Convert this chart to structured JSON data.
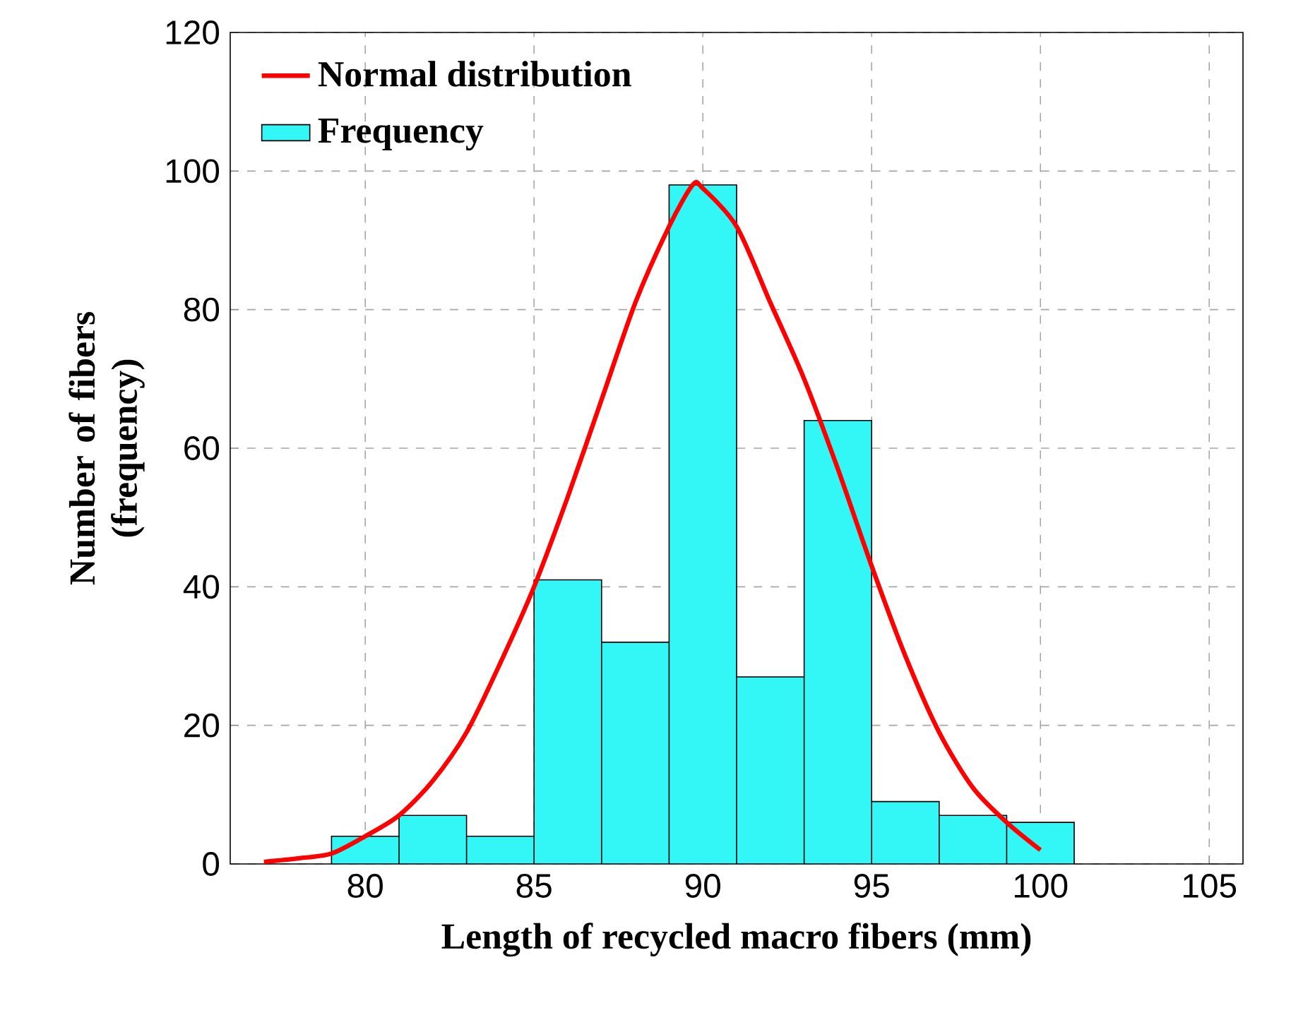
{
  "chart_data": {
    "type": "histogram",
    "xlabel": "Length of recycled macro fibers (mm)",
    "ylabel": "Number of fibers (frequency)",
    "xlim": [
      76,
      106
    ],
    "xticks": [
      80,
      85,
      90,
      95,
      100,
      105
    ],
    "ylim": [
      0,
      120
    ],
    "yticks": [
      0,
      20,
      40,
      60,
      80,
      100,
      120
    ],
    "grid": true,
    "legend": "top left",
    "series": [
      {
        "name": "Normal distribution",
        "type": "line",
        "color": "#ff0000",
        "x": [
          77,
          78,
          79,
          80,
          81,
          82,
          83,
          84,
          85,
          86,
          87,
          88,
          89,
          89.7,
          90,
          91,
          92,
          93,
          94,
          95,
          96,
          97,
          98,
          99,
          100
        ],
        "values": [
          0.3,
          0.8,
          1.5,
          4,
          7,
          12,
          19,
          29,
          40,
          53,
          67,
          81,
          92,
          98,
          97.5,
          92,
          81,
          70,
          57,
          43,
          30,
          19,
          11,
          6,
          2
        ]
      },
      {
        "name": "Frequency",
        "color": "#33f6f6",
        "bins": [
          79,
          81,
          83,
          85,
          87,
          89,
          91,
          93,
          95,
          97,
          99,
          101
        ],
        "values": [
          4,
          7,
          4,
          41,
          32,
          98,
          27,
          64,
          9,
          7,
          6
        ]
      }
    ]
  }
}
